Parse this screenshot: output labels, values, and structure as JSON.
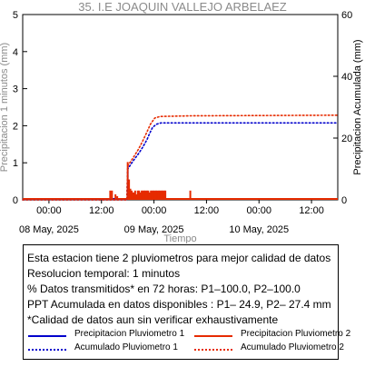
{
  "title": "35. I.E JOAQUIN VALLEJO ARBELAEZ",
  "colors": {
    "p1": "#0000cc",
    "p2": "#e62b00",
    "axis_gray": "#8a8a8a"
  },
  "chart_data": {
    "type": "line",
    "ylabel_left": "Precipitacion 1 minutos (mm)",
    "ylabel_right": "Precipitacion Acumulada (mm)",
    "xlabel": "Tiempo",
    "left_ylim": [
      0,
      5
    ],
    "left_yticks": [
      0,
      1,
      2,
      3,
      4,
      5
    ],
    "right_ylim": [
      0,
      60
    ],
    "right_yticks": [
      0,
      20,
      40,
      60
    ],
    "x_range_hours": [
      -6,
      66
    ],
    "x_ticks": [
      {
        "hour": 0,
        "label": "00:00",
        "date": "08 May, 2025"
      },
      {
        "hour": 12,
        "label": "12:00",
        "date": ""
      },
      {
        "hour": 24,
        "label": "00:00",
        "date": "09 May, 2025"
      },
      {
        "hour": 36,
        "label": "12:00",
        "date": ""
      },
      {
        "hour": 48,
        "label": "00:00",
        "date": "10 May, 2025"
      },
      {
        "hour": 60,
        "label": "12:00",
        "date": ""
      }
    ],
    "series": [
      {
        "name": "Precipitacion Pluviometro 1",
        "style": "bars",
        "color_key": "p1",
        "points": [
          [
            14.9,
            0.05
          ],
          [
            15.5,
            0.05
          ],
          [
            18.3,
            0.05
          ],
          [
            19.6,
            0.05
          ],
          [
            21.2,
            0.05
          ]
        ]
      },
      {
        "name": "Precipitacion Pluviometro 2",
        "style": "bars",
        "color_key": "p2",
        "points": [
          [
            14.0,
            0.25
          ],
          [
            14.4,
            0.25
          ],
          [
            15.2,
            0.15
          ],
          [
            15.6,
            0.1
          ],
          [
            18.0,
            1.02
          ],
          [
            18.3,
            0.55
          ],
          [
            18.6,
            0.3
          ],
          [
            18.9,
            0.25
          ],
          [
            19.1,
            0.2
          ],
          [
            19.4,
            0.2
          ],
          [
            19.7,
            0.25
          ],
          [
            20.0,
            0.15
          ],
          [
            20.3,
            0.25
          ],
          [
            20.6,
            0.25
          ],
          [
            20.9,
            0.2
          ],
          [
            21.2,
            0.25
          ],
          [
            21.5,
            0.25
          ],
          [
            21.8,
            0.25
          ],
          [
            22.1,
            0.25
          ],
          [
            22.4,
            0.25
          ],
          [
            22.7,
            0.25
          ],
          [
            23.0,
            0.2
          ],
          [
            23.3,
            0.25
          ],
          [
            23.6,
            0.25
          ],
          [
            23.9,
            0.25
          ],
          [
            24.2,
            0.25
          ],
          [
            24.5,
            0.25
          ],
          [
            24.8,
            0.25
          ],
          [
            25.1,
            0.25
          ],
          [
            25.4,
            0.25
          ],
          [
            25.7,
            0.25
          ],
          [
            26.0,
            0.25
          ],
          [
            26.3,
            0.25
          ],
          [
            26.6,
            0.25
          ],
          [
            32.3,
            0.25
          ]
        ]
      },
      {
        "name": "Acumulado Pluviometro 1",
        "style": "dotted",
        "color_key": "p1",
        "points": [
          [
            -6,
            0
          ],
          [
            17.8,
            0
          ],
          [
            18.0,
            10
          ],
          [
            19.2,
            12.5
          ],
          [
            20.5,
            15
          ],
          [
            21.4,
            17
          ],
          [
            22.4,
            19.5
          ],
          [
            23.0,
            21.5
          ],
          [
            23.7,
            23.5
          ],
          [
            24.6,
            24.5
          ],
          [
            25.6,
            24.9
          ],
          [
            66,
            24.9
          ]
        ]
      },
      {
        "name": "Acumulado Pluviometro 2",
        "style": "dotted",
        "color_key": "p2",
        "points": [
          [
            -6,
            0
          ],
          [
            17.8,
            0
          ],
          [
            18.0,
            11
          ],
          [
            19.2,
            13.5
          ],
          [
            20.5,
            16.5
          ],
          [
            21.4,
            19
          ],
          [
            22.4,
            22
          ],
          [
            23.2,
            24.5
          ],
          [
            24.2,
            26.5
          ],
          [
            25.4,
            27.0
          ],
          [
            32.3,
            27.2
          ],
          [
            66,
            27.4
          ]
        ]
      }
    ]
  },
  "info": {
    "line1": "Esta estacion tiene 2 pluviometros para mejor calidad de datos",
    "line2": "Resolucion temporal: 1 minutos",
    "line3": "% Datos transmitidos* en 72 horas: P1–100.0, P2–100.0",
    "line4": "PPT Acumulada en datos disponibles : P1– 24.9, P2– 27.4 mm",
    "line5": "*Calidad de datos aun sin verificar exhaustivamente",
    "legend": {
      "p1_rain": "Precipitacion Pluviometro 1",
      "p2_rain": "Precipitacion Pluviometro 2",
      "p1_acc": "Acumulado Pluviometro 1",
      "p2_acc": "Acumulado Pluviometro 2"
    }
  }
}
